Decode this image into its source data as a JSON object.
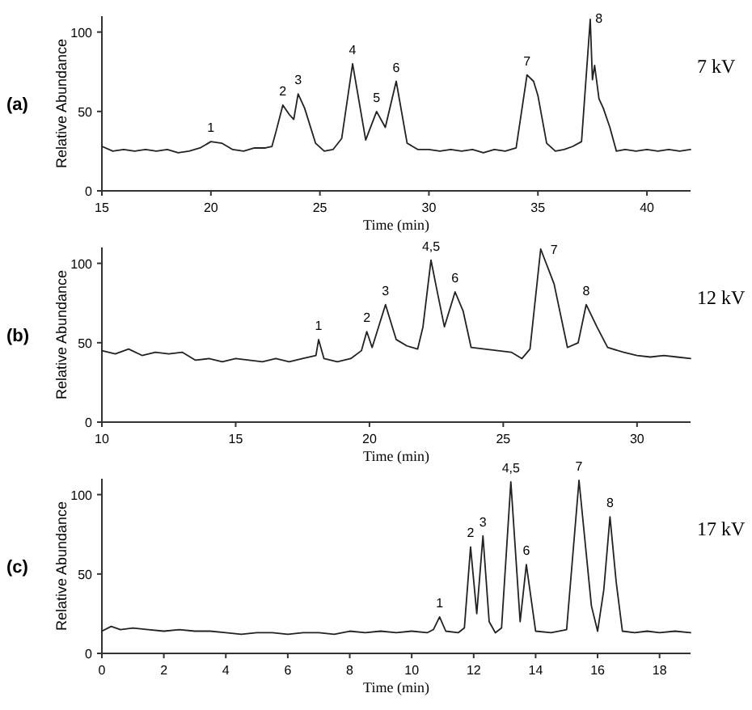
{
  "chart_data": [
    {
      "type": "line",
      "xlabel": "Time (min)",
      "ylabel": "Relative Abundance",
      "xlim": [
        15,
        42
      ],
      "ylim": [
        0,
        110
      ],
      "xticks": [
        15,
        20,
        25,
        30,
        35,
        40
      ],
      "yticks": [
        0,
        50,
        100
      ],
      "annotations": [
        "(a)",
        "7 kV",
        {
          "text": "1",
          "x": 20.0,
          "y": 31
        },
        {
          "text": "2",
          "x": 23.3,
          "y": 54
        },
        {
          "text": "3",
          "x": 24.0,
          "y": 61
        },
        {
          "text": "4",
          "x": 26.5,
          "y": 80
        },
        {
          "text": "5",
          "x": 27.6,
          "y": 50
        },
        {
          "text": "6",
          "x": 28.5,
          "y": 69
        },
        {
          "text": "7",
          "x": 34.5,
          "y": 73
        },
        {
          "text": "8",
          "x": 37.8,
          "y": 100
        }
      ],
      "series": [
        {
          "color": "#222222",
          "x": [
            15,
            15.5,
            16,
            16.5,
            17,
            17.5,
            18,
            18.5,
            19,
            19.5,
            20,
            20.5,
            21,
            21.5,
            22,
            22.5,
            22.8,
            23,
            23.3,
            23.6,
            23.8,
            24.0,
            24.3,
            24.8,
            25.2,
            25.6,
            26.0,
            26.5,
            27.1,
            27.6,
            28.0,
            28.5,
            29.0,
            29.5,
            30,
            30.5,
            31,
            31.5,
            32,
            32.5,
            33,
            33.5,
            34,
            34.5,
            34.8,
            35.0,
            35.4,
            35.8,
            36.2,
            36.6,
            37.0,
            37.4,
            37.5,
            37.6,
            37.8,
            38.0,
            38.3,
            38.6,
            39,
            39.5,
            40,
            40.5,
            41,
            41.5,
            42
          ],
          "values": [
            28,
            25,
            26,
            25,
            26,
            25,
            26,
            24,
            25,
            27,
            31,
            30,
            26,
            25,
            27,
            27,
            28,
            38,
            54,
            48,
            45,
            61,
            52,
            30,
            25,
            26,
            33,
            80,
            32,
            50,
            40,
            69,
            30,
            26,
            26,
            25,
            26,
            25,
            26,
            24,
            26,
            25,
            27,
            73,
            69,
            60,
            30,
            25,
            26,
            28,
            31,
            108,
            70,
            79,
            58,
            52,
            40,
            25,
            26,
            25,
            26,
            25,
            26,
            25,
            26
          ]
        }
      ]
    },
    {
      "type": "line",
      "xlabel": "Time (min)",
      "ylabel": "Relative Abundance",
      "xlim": [
        10,
        32
      ],
      "ylim": [
        0,
        110
      ],
      "xticks": [
        10,
        15,
        20,
        25,
        30
      ],
      "yticks": [
        0,
        50,
        100
      ],
      "annotations": [
        "(b)",
        "12 kV",
        {
          "text": "1",
          "x": 18.1,
          "y": 52
        },
        {
          "text": "2",
          "x": 19.9,
          "y": 57
        },
        {
          "text": "3",
          "x": 20.6,
          "y": 74
        },
        {
          "text": "4,5",
          "x": 22.3,
          "y": 102
        },
        {
          "text": "6",
          "x": 23.2,
          "y": 82
        },
        {
          "text": "7",
          "x": 26.9,
          "y": 100
        },
        {
          "text": "8",
          "x": 28.1,
          "y": 74
        }
      ],
      "series": [
        {
          "color": "#222222",
          "x": [
            10,
            10.5,
            11,
            11.5,
            12,
            12.5,
            13,
            13.5,
            14,
            14.5,
            15,
            15.5,
            16,
            16.5,
            17,
            17.5,
            18.0,
            18.1,
            18.3,
            18.8,
            19.3,
            19.7,
            19.9,
            20.1,
            20.6,
            21.0,
            21.4,
            21.8,
            22.0,
            22.3,
            22.5,
            22.8,
            23.2,
            23.5,
            23.8,
            24.3,
            24.8,
            25.3,
            25.7,
            26.0,
            26.4,
            26.9,
            27.4,
            27.8,
            28.1,
            28.5,
            28.9,
            29.5,
            30,
            30.5,
            31,
            31.5,
            32
          ],
          "values": [
            45,
            43,
            46,
            42,
            44,
            43,
            44,
            39,
            40,
            38,
            40,
            39,
            38,
            40,
            38,
            40,
            42,
            52,
            40,
            38,
            40,
            45,
            57,
            47,
            74,
            52,
            48,
            46,
            60,
            102,
            85,
            60,
            82,
            70,
            47,
            46,
            45,
            44,
            40,
            46,
            109,
            87,
            47,
            50,
            74,
            60,
            47,
            44,
            42,
            41,
            42,
            41,
            40
          ]
        }
      ]
    },
    {
      "type": "line",
      "xlabel": "Time (min)",
      "ylabel": "Relative Abundance",
      "xlim": [
        0,
        19
      ],
      "ylim": [
        0,
        110
      ],
      "xticks": [
        0,
        2,
        4,
        6,
        8,
        10,
        12,
        14,
        16,
        18
      ],
      "yticks": [
        0,
        50,
        100
      ],
      "annotations": [
        "(c)",
        "17 kV",
        {
          "text": "1",
          "x": 10.9,
          "y": 23
        },
        {
          "text": "2",
          "x": 11.9,
          "y": 67
        },
        {
          "text": "3",
          "x": 12.3,
          "y": 74
        },
        {
          "text": "4,5",
          "x": 13.2,
          "y": 108
        },
        {
          "text": "6",
          "x": 13.7,
          "y": 56
        },
        {
          "text": "7",
          "x": 15.4,
          "y": 109
        },
        {
          "text": "8",
          "x": 16.4,
          "y": 86
        }
      ],
      "series": [
        {
          "color": "#222222",
          "x": [
            0,
            0.3,
            0.6,
            1,
            1.5,
            2,
            2.5,
            3,
            3.5,
            4,
            4.5,
            5,
            5.5,
            6,
            6.5,
            7,
            7.5,
            8,
            8.5,
            9,
            9.5,
            10,
            10.5,
            10.7,
            10.9,
            11.1,
            11.5,
            11.7,
            11.9,
            12.1,
            12.3,
            12.5,
            12.7,
            12.9,
            13.2,
            13.5,
            13.7,
            14.0,
            14.5,
            15.0,
            15.4,
            15.8,
            16.0,
            16.2,
            16.4,
            16.6,
            16.8,
            17.2,
            17.6,
            18,
            18.5,
            19
          ],
          "values": [
            14,
            17,
            15,
            16,
            15,
            14,
            15,
            14,
            14,
            13,
            12,
            13,
            13,
            12,
            13,
            13,
            12,
            14,
            13,
            14,
            13,
            14,
            13,
            15,
            23,
            14,
            13,
            16,
            67,
            25,
            74,
            20,
            13,
            16,
            108,
            20,
            56,
            14,
            13,
            15,
            109,
            30,
            14,
            40,
            86,
            45,
            14,
            13,
            14,
            13,
            14,
            13
          ]
        }
      ]
    }
  ]
}
